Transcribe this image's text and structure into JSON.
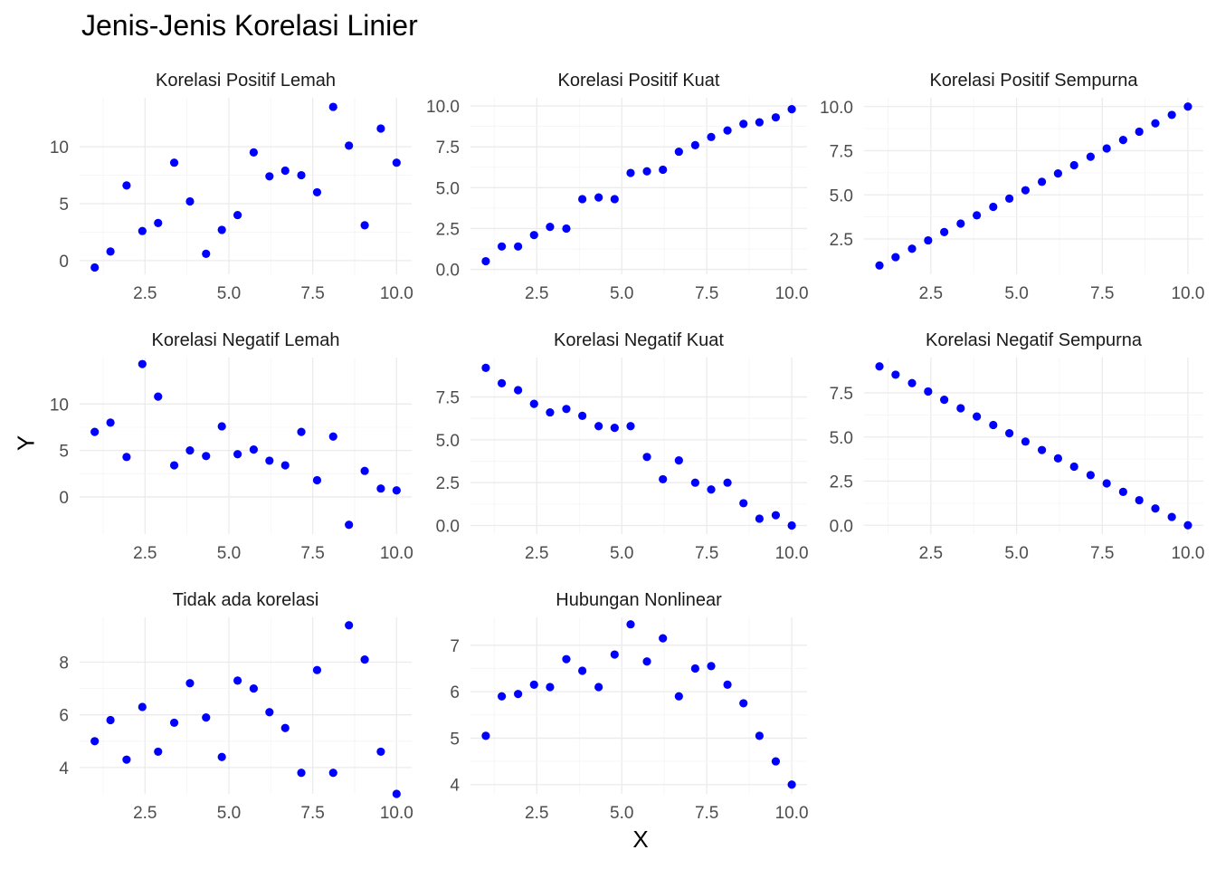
{
  "title": "Jenis-Jenis Korelasi Linier",
  "xlabel": "X",
  "ylabel": "Y",
  "point_color": "#0000ff",
  "chart_data": {
    "type": "scatter",
    "facets": true,
    "x_ticks": [
      2.5,
      5.0,
      7.5,
      10.0
    ],
    "x": [
      1.0,
      1.47,
      1.95,
      2.42,
      2.89,
      3.37,
      3.84,
      4.32,
      4.79,
      5.26,
      5.74,
      6.21,
      6.68,
      7.16,
      7.63,
      8.11,
      8.58,
      9.05,
      9.53,
      10.0
    ],
    "panels": [
      {
        "title": "Korelasi Positif Lemah",
        "y_ticks": [
          0,
          5,
          10
        ],
        "ylim": [
          -1.2,
          14.3
        ],
        "y": [
          -0.6,
          0.8,
          6.6,
          2.6,
          3.3,
          8.6,
          5.2,
          0.6,
          2.7,
          4.0,
          9.5,
          7.4,
          7.9,
          7.5,
          6.0,
          13.5,
          10.1,
          3.1,
          11.6,
          8.6
        ]
      },
      {
        "title": "Korelasi Positif Kuat",
        "y_ticks": [
          "0.0",
          "2.5",
          "5.0",
          "7.5",
          "10.0"
        ],
        "ylim": [
          -0.3,
          10.5
        ],
        "y": [
          0.5,
          1.4,
          1.4,
          2.1,
          2.6,
          2.5,
          4.3,
          4.4,
          4.3,
          5.9,
          6.0,
          6.1,
          7.2,
          7.6,
          8.1,
          8.5,
          8.9,
          9.0,
          9.3,
          9.8
        ]
      },
      {
        "title": "Korelasi Positif Sempurna",
        "y_ticks": [
          "2.5",
          "5.0",
          "7.5",
          "10.0"
        ],
        "ylim": [
          0.5,
          10.5
        ],
        "y": [
          1.0,
          1.47,
          1.95,
          2.42,
          2.89,
          3.37,
          3.84,
          4.32,
          4.79,
          5.26,
          5.74,
          6.21,
          6.68,
          7.16,
          7.63,
          8.11,
          8.58,
          9.05,
          9.53,
          10.0
        ]
      },
      {
        "title": "Korelasi Negatif Lemah",
        "y_ticks": [
          0,
          5,
          10
        ],
        "ylim": [
          -4.0,
          15.0
        ],
        "y": [
          7.0,
          8.0,
          4.3,
          14.3,
          10.8,
          3.4,
          5.0,
          4.4,
          7.6,
          4.6,
          5.1,
          3.9,
          3.4,
          7.0,
          1.8,
          6.5,
          -3.0,
          2.8,
          0.9,
          0.7
        ]
      },
      {
        "title": "Korelasi Negatif Kuat",
        "y_ticks": [
          "0.0",
          "2.5",
          "5.0",
          "7.5"
        ],
        "ylim": [
          -0.5,
          9.8
        ],
        "y": [
          9.2,
          8.3,
          7.9,
          7.1,
          6.6,
          6.8,
          6.4,
          5.8,
          5.7,
          5.8,
          4.0,
          2.7,
          3.8,
          2.5,
          2.1,
          2.5,
          1.3,
          0.4,
          0.6,
          0.0
        ]
      },
      {
        "title": "Korelasi Negatif Sempurna",
        "y_ticks": [
          "0.0",
          "2.5",
          "5.0",
          "7.5"
        ],
        "ylim": [
          -0.5,
          9.5
        ],
        "y": [
          9.0,
          8.53,
          8.05,
          7.58,
          7.11,
          6.63,
          6.16,
          5.68,
          5.21,
          4.74,
          4.26,
          3.79,
          3.32,
          2.84,
          2.37,
          1.89,
          1.42,
          0.95,
          0.47,
          0.0
        ]
      },
      {
        "title": "Tidak ada korelasi",
        "y_ticks": [
          4,
          6,
          8
        ],
        "ylim": [
          3.0,
          9.7
        ],
        "y": [
          5.0,
          5.8,
          4.3,
          6.3,
          4.6,
          5.7,
          7.2,
          5.9,
          4.4,
          7.3,
          7.0,
          6.1,
          5.5,
          3.8,
          7.7,
          3.8,
          9.4,
          8.1,
          4.6,
          3.0
        ]
      },
      {
        "title": "Hubungan Nonlinear",
        "y_ticks": [
          4,
          5,
          6,
          7
        ],
        "ylim": [
          3.8,
          7.6
        ],
        "y": [
          5.05,
          5.9,
          5.95,
          6.15,
          6.1,
          6.7,
          6.45,
          6.1,
          6.8,
          7.45,
          6.65,
          7.15,
          5.9,
          6.5,
          6.55,
          6.15,
          5.75,
          5.05,
          4.5,
          4.0
        ]
      }
    ]
  }
}
